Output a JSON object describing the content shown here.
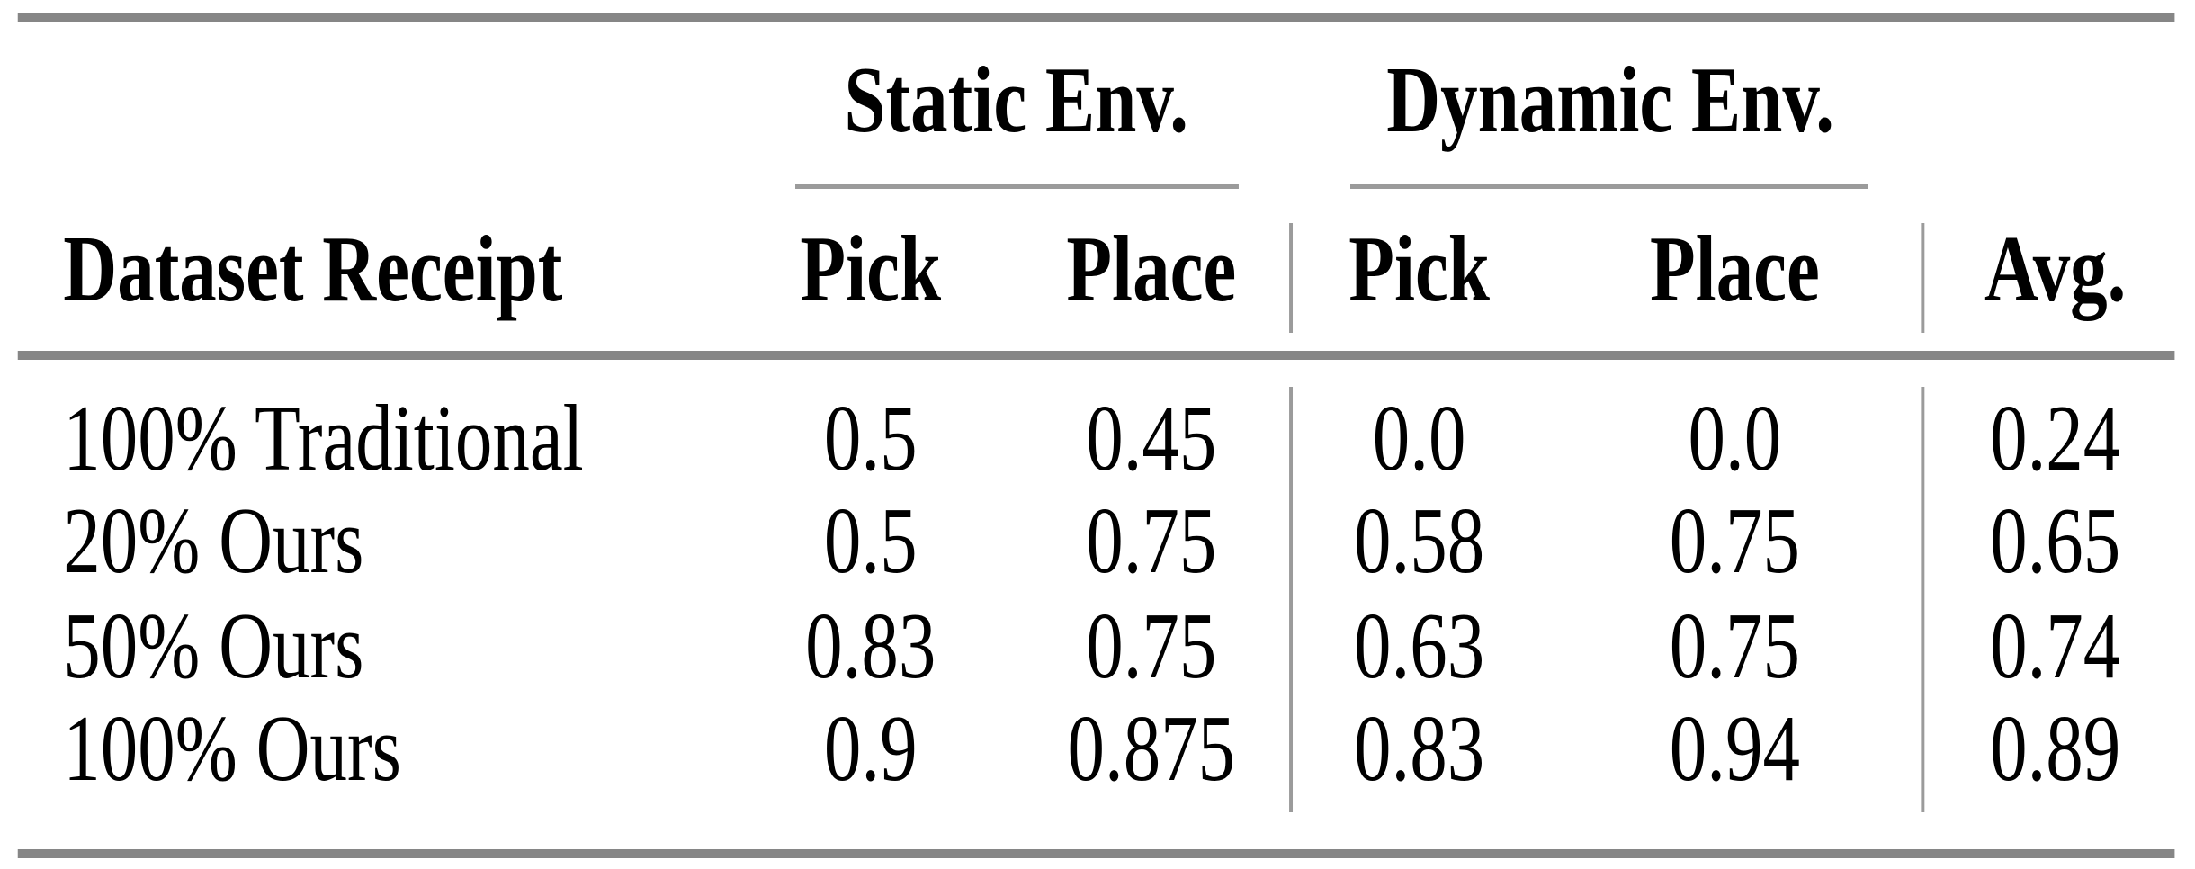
{
  "table": {
    "col_groups": [
      {
        "label": "Static Env."
      },
      {
        "label": "Dynamic Env."
      }
    ],
    "header": {
      "row_label": "Dataset Receipt",
      "cols": [
        "Pick",
        "Place",
        "Pick",
        "Place",
        "Avg."
      ]
    },
    "rows": [
      {
        "label": "100% Traditional",
        "values": [
          "0.5",
          "0.45",
          "0.0",
          "0.0",
          "0.24"
        ]
      },
      {
        "label": "20% Ours",
        "values": [
          "0.5",
          "0.75",
          "0.58",
          "0.75",
          "0.65"
        ]
      },
      {
        "label": "50% Ours",
        "values": [
          "0.83",
          "0.75",
          "0.63",
          "0.75",
          "0.74"
        ]
      },
      {
        "label": "100% Ours",
        "values": [
          "0.9",
          "0.875",
          "0.83",
          "0.94",
          "0.89"
        ]
      }
    ],
    "colors": {
      "rule_heavy": "#868686",
      "rule_light": "#9b9b9b",
      "text": "#000000",
      "background": "#ffffff"
    }
  }
}
